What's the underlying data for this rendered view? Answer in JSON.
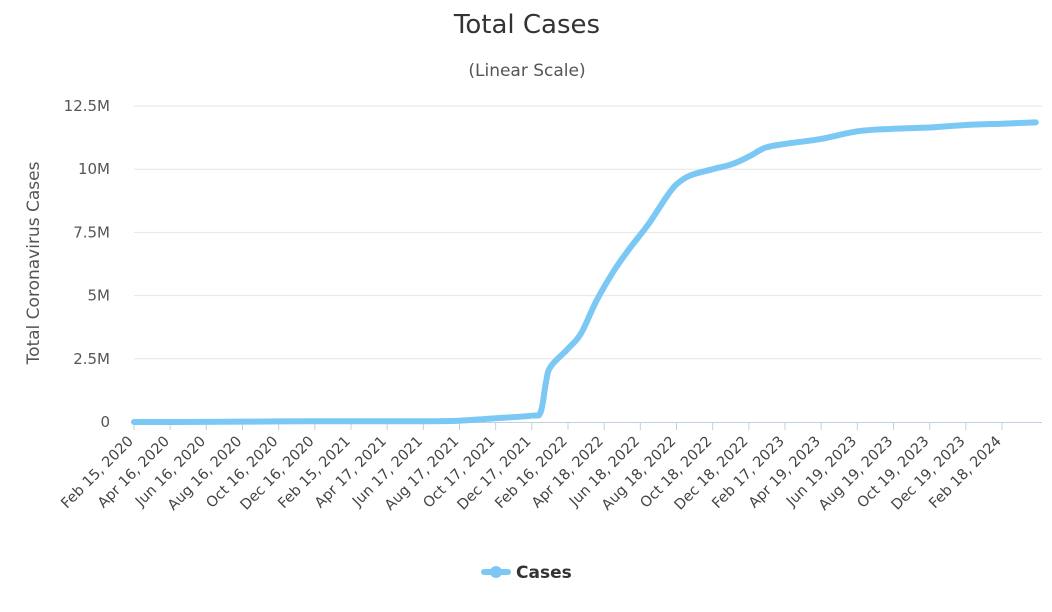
{
  "chart_data": {
    "type": "line",
    "title": "Total Cases",
    "subtitle": "(Linear Scale)",
    "ylabel": "Total Coronavirus Cases",
    "xlabel": "",
    "ylim": [
      0,
      12500000
    ],
    "yticks": [
      0,
      2500000,
      5000000,
      7500000,
      10000000,
      12500000
    ],
    "ytick_labels": [
      "0",
      "2.5M",
      "5M",
      "7.5M",
      "10M",
      "12.5M"
    ],
    "grid": true,
    "legend_position": "bottom-center",
    "x_tick_labels": [
      "Feb 15, 2020",
      "Apr 16, 2020",
      "Jun 16, 2020",
      "Aug 16, 2020",
      "Oct 16, 2020",
      "Dec 16, 2020",
      "Feb 15, 2021",
      "Apr 17, 2021",
      "Jun 17, 2021",
      "Aug 17, 2021",
      "Oct 17, 2021",
      "Dec 17, 2021",
      "Feb 16, 2022",
      "Apr 18, 2022",
      "Jun 18, 2022",
      "Aug 18, 2022",
      "Oct 18, 2022",
      "Dec 18, 2022",
      "Feb 17, 2023",
      "Apr 19, 2023",
      "Jun 19, 2023",
      "Aug 19, 2023",
      "Oct 19, 2023",
      "Dec 19, 2023",
      "Feb 18, 2024"
    ],
    "series": [
      {
        "name": "Cases",
        "color": "#7cc8f4",
        "points": [
          [
            "Feb 15, 2020",
            0
          ],
          [
            "Jun 16, 2020",
            5000
          ],
          [
            "Oct 16, 2020",
            25000
          ],
          [
            "Feb 15, 2021",
            30000
          ],
          [
            "Jun 17, 2021",
            30000
          ],
          [
            "Aug 17, 2021",
            50000
          ],
          [
            "Oct 17, 2021",
            150000
          ],
          [
            "Dec 17, 2021",
            250000
          ],
          [
            "Jan 1, 2022",
            400000
          ],
          [
            "Jan 10, 2022",
            1600000
          ],
          [
            "Jan 18, 2022",
            2200000
          ],
          [
            "Feb 16, 2022",
            2900000
          ],
          [
            "Mar 10, 2022",
            3500000
          ],
          [
            "Apr 5, 2022",
            4800000
          ],
          [
            "May 5, 2022",
            6000000
          ],
          [
            "Jun 1, 2022",
            6900000
          ],
          [
            "Jul 1, 2022",
            7800000
          ],
          [
            "Aug 1, 2022",
            8900000
          ],
          [
            "Aug 18, 2022",
            9400000
          ],
          [
            "Sep 10, 2022",
            9750000
          ],
          [
            "Oct 18, 2022",
            10000000
          ],
          [
            "Nov 20, 2022",
            10200000
          ],
          [
            "Dec 18, 2022",
            10500000
          ],
          [
            "Jan 15, 2023",
            10850000
          ],
          [
            "Feb 17, 2023",
            11000000
          ],
          [
            "Apr 19, 2023",
            11200000
          ],
          [
            "Jun 19, 2023",
            11500000
          ],
          [
            "Aug 19, 2023",
            11600000
          ],
          [
            "Oct 19, 2023",
            11650000
          ],
          [
            "Dec 19, 2023",
            11750000
          ],
          [
            "Feb 18, 2024",
            11800000
          ],
          [
            "Apr 15, 2024",
            11850000
          ]
        ]
      }
    ]
  }
}
